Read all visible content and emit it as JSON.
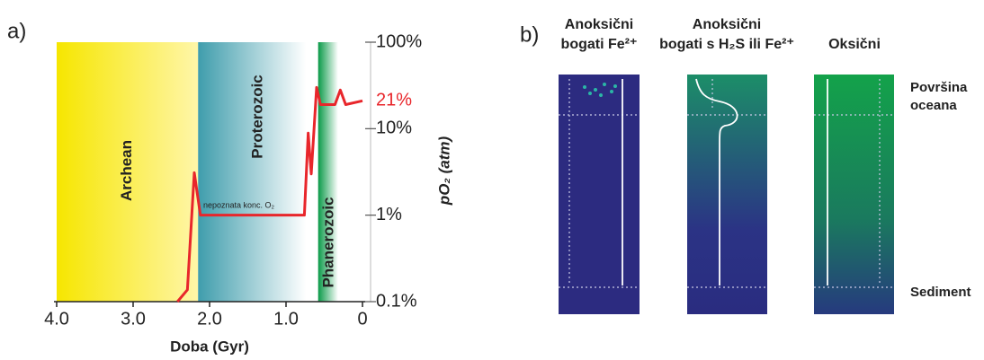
{
  "chart_data": {
    "type": "line",
    "panel_label": "a)",
    "x_label": "Doba (Gyr)",
    "y_label": "pO₂ (atm)",
    "x": [
      2.42,
      2.29,
      2.2,
      2.12,
      0.76,
      0.71,
      0.67,
      0.6,
      0.55,
      0.36,
      0.29,
      0.22,
      0
    ],
    "series": [
      {
        "color": "#e8262b",
        "values": [
          0.1,
          0.137,
          3.1,
          1,
          1,
          8.9,
          3,
          30,
          19,
          19,
          28,
          19,
          21
        ]
      }
    ],
    "xlim": [
      4,
      0
    ],
    "ylim": [
      0.1,
      100
    ],
    "ylog": true,
    "xticks": [
      {
        "value": 4,
        "label": "4.0"
      },
      {
        "value": 3,
        "label": "3.0"
      },
      {
        "value": 2,
        "label": "2.0"
      },
      {
        "value": 1,
        "label": "1.0"
      },
      0
    ],
    "yticks": [
      {
        "value": 0.1,
        "label": "0.1%"
      },
      {
        "value": 1,
        "label": "1%"
      },
      {
        "value": 10,
        "label": "10%"
      },
      {
        "value": 100,
        "label": "100%"
      }
    ],
    "eons": [
      {
        "name": "Archean",
        "start": 4,
        "end": 2.15,
        "color": "#f6e600"
      },
      {
        "name": "Proterozoic",
        "start": 2.15,
        "end": 0.58,
        "color": "#3f9dac"
      },
      {
        "name": "Phanerozoic",
        "start": 0.58,
        "end": 0.29,
        "color": "#0a9a48"
      }
    ],
    "annotations": [
      "21%",
      "nepoznata konc. O₂"
    ]
  },
  "panel_b": {
    "panel_label": "b)",
    "columns": [
      {
        "title": [
          "Anoksični",
          "bogati Fe²⁺"
        ]
      },
      {
        "title": [
          "Anoksični",
          "bogati s H₂S ili Fe²⁺"
        ]
      },
      {
        "title": [
          "Oksični"
        ]
      }
    ],
    "labels": [
      [
        "Površina",
        "oceana"
      ],
      [
        "Sediment"
      ]
    ]
  }
}
